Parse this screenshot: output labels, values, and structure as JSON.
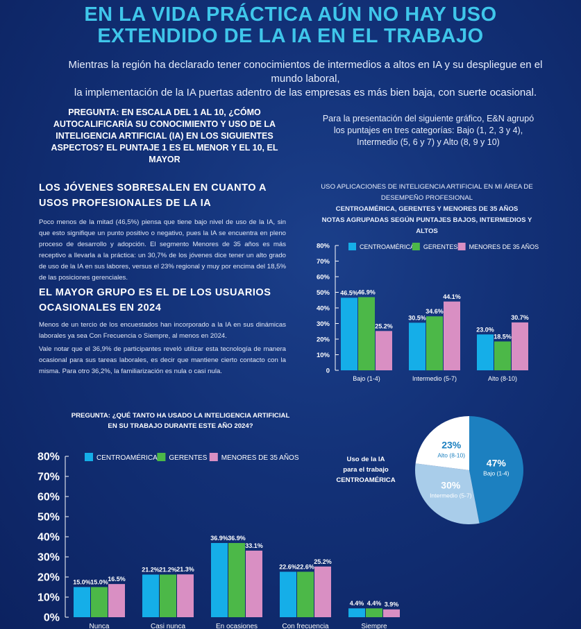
{
  "header": {
    "title_line1": "EN LA VIDA PRÁCTICA AÚN NO HAY USO",
    "title_line2": "EXTENDIDO DE LA IA EN EL TRABAJO",
    "subtitle_line1": "Mientras la región ha declarado tener conocimientos de intermedios a altos en IA y su despliegue en el mundo laboral,",
    "subtitle_line2": "la implementación de la IA puertas adentro de las empresas es más bien baja, con suerte ocasional."
  },
  "question1": "PREGUNTA: EN ESCALA DEL 1 AL 10, ¿CÓMO AUTOCALIFICARÍA SU CONOCIMIENTO Y USO DE LA INTELIGENCIA ARTIFICIAL (IA) EN LOS SIGUIENTES ASPECTOS? EL PUNTAJE 1 ES EL MENOR Y EL 10, EL MAYOR",
  "grouping_note": "Para la presentación del siguiente gráfico, E&N agrupó los puntajes en tres categorías: Bajo (1, 2, 3 y 4), Intermedio (5, 6 y 7) y Alto (8, 9 y 10)",
  "section1": {
    "heading": "LOS JÓVENES SOBRESALEN EN CUANTO A USOS PROFESIONALES DE LA IA",
    "body": "Poco menos de la mitad (46,5%) piensa que tiene bajo nivel de uso de la IA, sin que esto signifique un punto positivo o negativo, pues la IA se encuentra en pleno proceso de desarrollo y adopción. El segmento Menores de 35 años es más receptivo a llevarla a la práctica: un 30,7% de los jóvenes dice tener un alto grado de uso de la IA en sus labores, versus el 23% regional y muy por encima del 18,5% de las posiciones gerenciales."
  },
  "section2": {
    "heading": "EL MAYOR GRUPO ES EL DE LOS USUARIOS OCASIONALES EN 2024",
    "body1": "Menos de un tercio de los encuestados han incorporado a la IA en sus dinámicas laborales ya sea Con Frecuencia o Siempre, al menos en 2024.",
    "body2": "Vale notar que el 36,9% de participantes reveló utilizar esta tecnología de manera ocasional para sus tareas laborales, es decir que mantiene cierto contacto con la misma. Para otro 36,2%, la familiarización es nula o casi nula."
  },
  "question2": "PREGUNTA: ¿QUÉ TANTO HA USADO LA INTELIGENCIA ARTIFICIAL EN SU TRABAJO DURANTE ESTE AÑO 2024?",
  "pie_label": {
    "line1": "Uso de la IA",
    "line2": "para el trabajo",
    "line3": "CENTROAMÉRICA"
  },
  "colors": {
    "centroamerica": "#15aee8",
    "gerentes": "#4cb848",
    "menores": "#d98fc3",
    "title": "#3fc6ea"
  },
  "chart_data": [
    {
      "type": "bar",
      "title_line1": "USO APLICACIONES DE INTELIGENCIA ARTIFICIAL EN MI ÁREA DE",
      "title_line2": "DESEMPEÑO PROFESIONAL",
      "title_line3": "CENTROAMÉRICA, GERENTES Y MENORES DE 35 AÑOS",
      "title_line4": "NOTAS AGRUPADAS SEGÚN PUNTAJES BAJOS, INTERMEDIOS Y ALTOS",
      "categories": [
        "Bajo (1-4)",
        "Intermedio (5-7)",
        "Alto (8-10)"
      ],
      "series": [
        {
          "name": "CENTROAMÉRICA",
          "values": [
            46.5,
            30.5,
            23.0
          ],
          "labels": [
            "46.5%",
            "30.5%",
            "23.0%"
          ]
        },
        {
          "name": "GERENTES",
          "values": [
            46.9,
            34.6,
            18.5
          ],
          "labels": [
            "46.9%",
            "34.6%",
            "18.5%"
          ]
        },
        {
          "name": "MENORES DE 35 AÑOS",
          "values": [
            25.2,
            44.1,
            30.7
          ],
          "labels": [
            "25.2%",
            "44.1%",
            "30.7%"
          ]
        }
      ],
      "ylim": [
        0,
        80
      ],
      "yticks": [
        "0",
        "10%",
        "20%",
        "30%",
        "40%",
        "50%",
        "60%",
        "70%",
        "80%"
      ]
    },
    {
      "type": "bar",
      "categories": [
        "Nunca",
        "Casi nunca",
        "En ocasiones",
        "Con frecuencia",
        "Siempre"
      ],
      "series": [
        {
          "name": "CENTROAMÉRICA",
          "values": [
            15.0,
            21.2,
            36.9,
            22.6,
            4.4
          ],
          "labels": [
            "15.0%",
            "21.2%",
            "36.9%",
            "22.6%",
            "4.4%"
          ]
        },
        {
          "name": "GERENTES",
          "values": [
            15.0,
            21.2,
            36.9,
            22.6,
            4.4
          ],
          "labels": [
            "15.0%",
            "21.2%",
            "36.9%",
            "22.6%",
            "4.4%"
          ]
        },
        {
          "name": "MENORES DE 35 AÑOS",
          "values": [
            16.5,
            21.3,
            33.1,
            25.2,
            3.9
          ],
          "labels": [
            "16.5%",
            "21.3%",
            "33.1%",
            "25.2%",
            "3.9%"
          ]
        }
      ],
      "ylim": [
        0,
        80
      ],
      "yticks": [
        "0%",
        "10%",
        "20%",
        "30%",
        "40%",
        "50%",
        "60%",
        "70%",
        "80%"
      ]
    },
    {
      "type": "pie",
      "slices": [
        {
          "name": "Bajo (1-4)",
          "value": 47,
          "label": "47%",
          "color": "#1c80c0"
        },
        {
          "name": "Intermedio (5-7)",
          "value": 30,
          "label": "30%",
          "color": "#a9cdea"
        },
        {
          "name": "Alto (8-10)",
          "value": 23,
          "label": "23%",
          "color": "#ffffff"
        }
      ]
    }
  ]
}
